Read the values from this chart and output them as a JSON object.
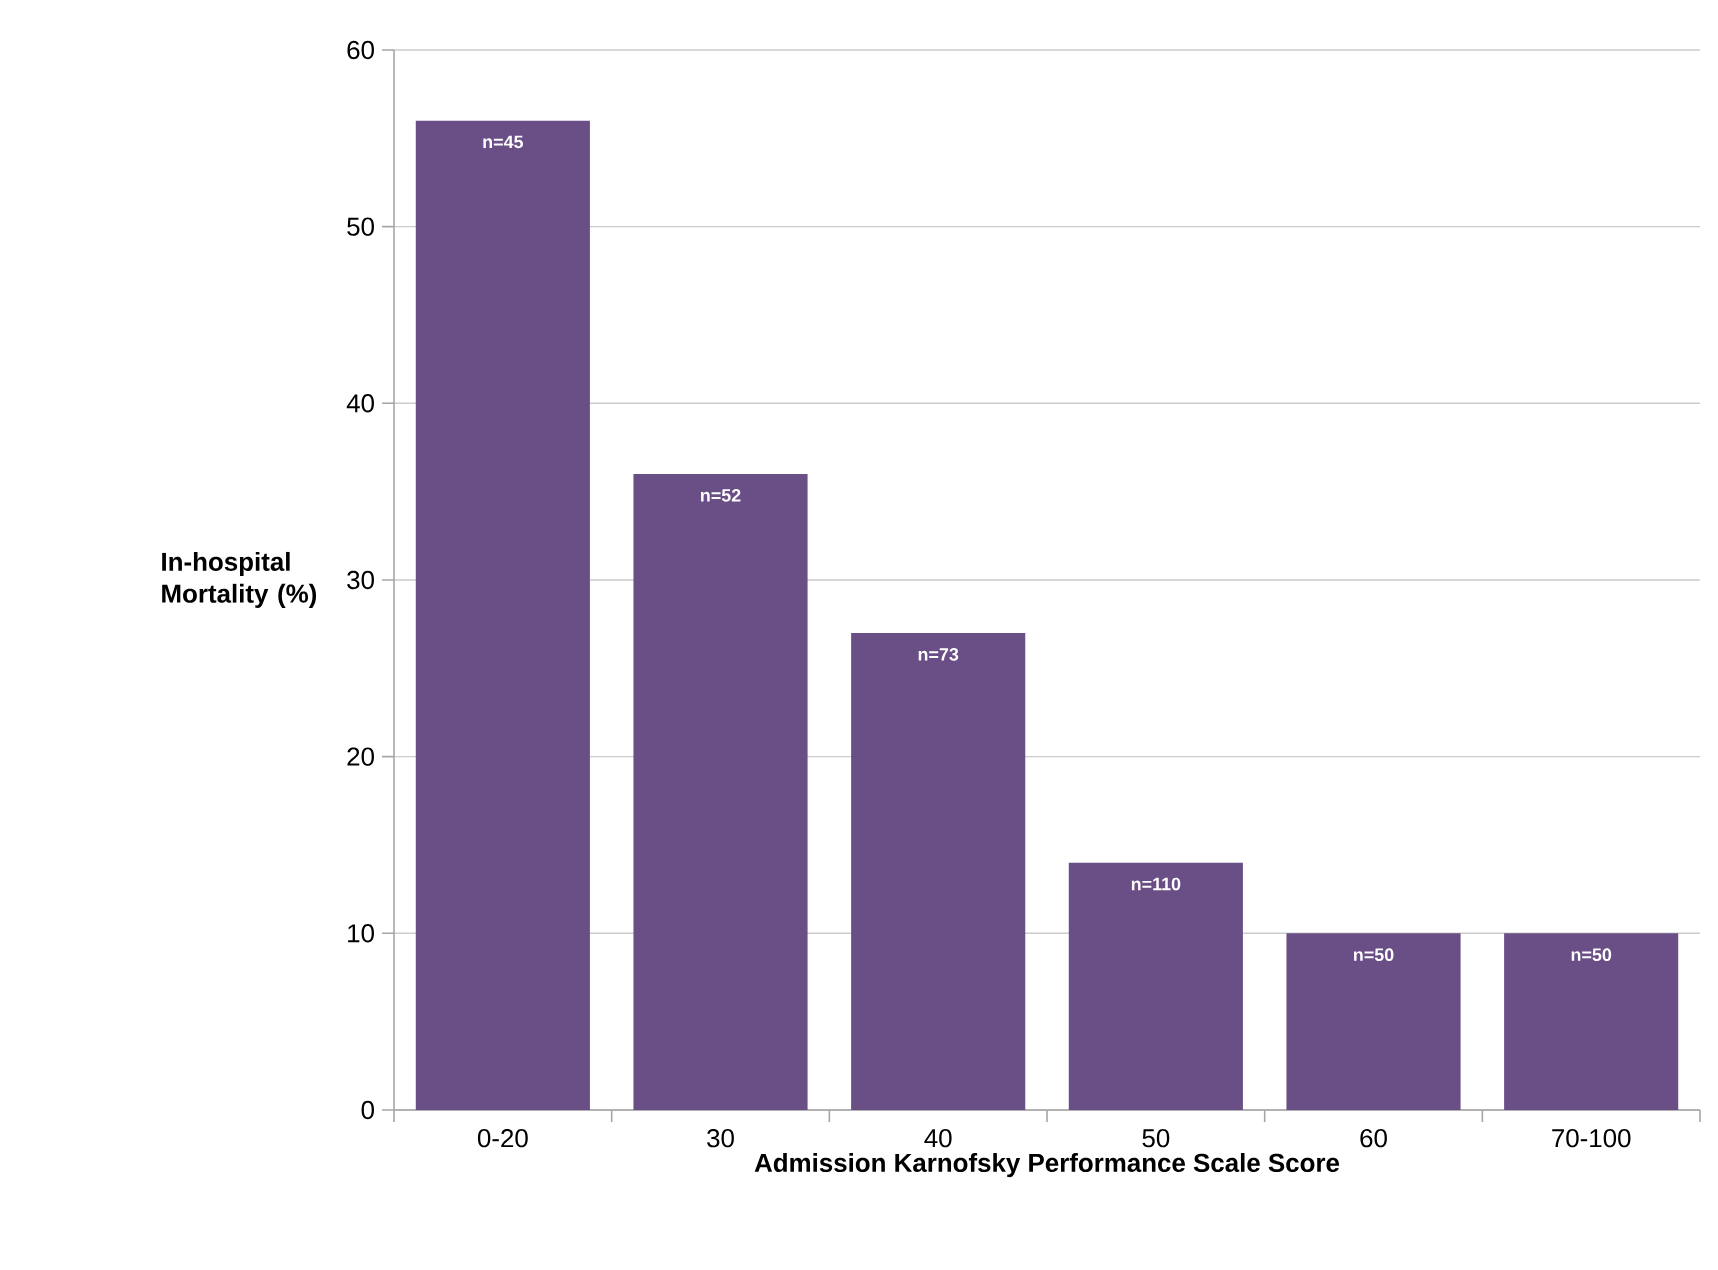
{
  "chart_data": {
    "type": "bar",
    "categories": [
      "0-20",
      "30",
      "40",
      "50",
      "60",
      "70-100"
    ],
    "values": [
      56,
      36,
      27,
      14,
      10,
      10
    ],
    "color": "#6a4f86",
    "xlabel": "Admission Karnofsky Performance Scale Score",
    "ylabel": "In-hospital Mortality (%)",
    "ylim": [
      0,
      60
    ],
    "yticks": [
      0,
      10,
      20,
      30,
      40,
      50,
      60
    ],
    "grid": "y",
    "annotations": [
      {
        "text": "n=45",
        "x": "0-20",
        "y": 56
      },
      {
        "text": "n=52",
        "x": "30",
        "y": 36
      },
      {
        "text": "n=73",
        "x": "40",
        "y": 27
      },
      {
        "text": "n=110",
        "x": "50",
        "y": 14
      },
      {
        "text": "n=50",
        "x": "60",
        "y": 10
      },
      {
        "text": "n=50",
        "x": "70-100",
        "y": 10
      }
    ]
  }
}
